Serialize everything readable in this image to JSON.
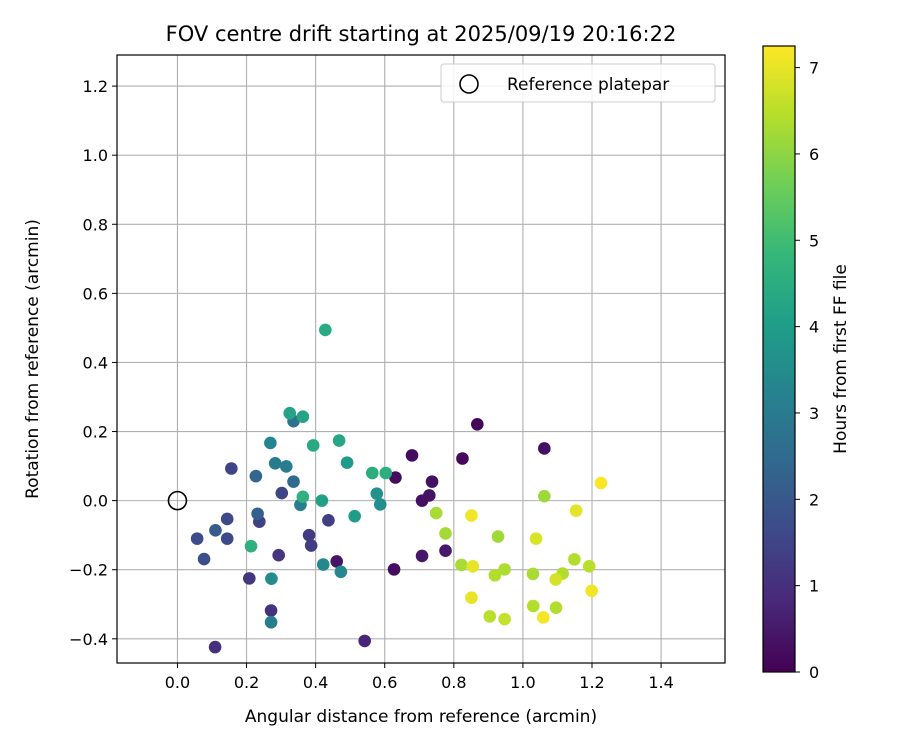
{
  "chart_data": {
    "type": "scatter",
    "title": "FOV centre drift starting at 2025/09/19 20:16:22",
    "xlabel": "Angular distance from reference (arcmin)",
    "ylabel": "Rotation from reference (arcmin)",
    "xlim": [
      -0.175,
      1.585
    ],
    "ylim": [
      -0.47,
      1.29
    ],
    "xticks": [
      0.0,
      0.2,
      0.4,
      0.6,
      0.8,
      1.0,
      1.2,
      1.4
    ],
    "xtick_labels": [
      "0.0",
      "0.2",
      "0.4",
      "0.6",
      "0.8",
      "1.0",
      "1.2",
      "1.4"
    ],
    "yticks": [
      -0.4,
      -0.2,
      0.0,
      0.2,
      0.4,
      0.6,
      0.8,
      1.0,
      1.2
    ],
    "ytick_labels": [
      "−0.4",
      "−0.2",
      "0.0",
      "0.2",
      "0.4",
      "0.6",
      "0.8",
      "1.0",
      "1.2"
    ],
    "grid": true,
    "legend": {
      "placement": "top-right",
      "entries": [
        "Reference platepar"
      ]
    },
    "reference_point": {
      "x": 0.0,
      "y": 0.0,
      "label": "Reference platepar",
      "marker": "hollow-circle"
    },
    "colorbar": {
      "label": "Hours from first FF file",
      "colormap": "viridis",
      "range": [
        0,
        7.25
      ],
      "ticks": [
        0,
        1,
        2,
        3,
        4,
        5,
        6,
        7
      ],
      "tick_labels": [
        "0",
        "1",
        "2",
        "3",
        "4",
        "5",
        "6",
        "7"
      ]
    },
    "series": [
      {
        "color_by": "hours",
        "points": [
          {
            "x": 0.868,
            "y": 0.221,
            "c": 0.1
          },
          {
            "x": 0.679,
            "y": 0.131,
            "c": 0.2
          },
          {
            "x": 0.825,
            "y": 0.122,
            "c": 0.15
          },
          {
            "x": 0.631,
            "y": 0.067,
            "c": 0.2
          },
          {
            "x": 0.737,
            "y": 0.055,
            "c": 0.3
          },
          {
            "x": 0.729,
            "y": 0.015,
            "c": 0.35
          },
          {
            "x": 0.708,
            "y": 0.0,
            "c": 0.3
          },
          {
            "x": 0.627,
            "y": -0.199,
            "c": 0.25
          },
          {
            "x": 0.708,
            "y": -0.16,
            "c": 0.45
          },
          {
            "x": 0.776,
            "y": -0.145,
            "c": 0.5
          },
          {
            "x": 0.461,
            "y": -0.176,
            "c": 0.4
          },
          {
            "x": 1.062,
            "y": 0.151,
            "c": 0.3
          },
          {
            "x": 0.542,
            "y": -0.406,
            "c": 0.75
          },
          {
            "x": 0.109,
            "y": -0.424,
            "c": 1.0
          },
          {
            "x": 0.271,
            "y": -0.318,
            "c": 1.1
          },
          {
            "x": 0.293,
            "y": -0.158,
            "c": 1.15
          },
          {
            "x": 0.208,
            "y": -0.225,
            "c": 1.2
          },
          {
            "x": 0.381,
            "y": -0.1,
            "c": 1.25
          },
          {
            "x": 0.387,
            "y": -0.13,
            "c": 1.3
          },
          {
            "x": 0.437,
            "y": -0.057,
            "c": 1.35
          },
          {
            "x": 0.237,
            "y": -0.061,
            "c": 1.4
          },
          {
            "x": 0.302,
            "y": 0.022,
            "c": 1.5
          },
          {
            "x": 0.156,
            "y": 0.093,
            "c": 1.5
          },
          {
            "x": 0.144,
            "y": -0.053,
            "c": 1.6
          },
          {
            "x": 0.144,
            "y": -0.11,
            "c": 1.65
          },
          {
            "x": 0.057,
            "y": -0.11,
            "c": 1.7
          },
          {
            "x": 0.077,
            "y": -0.169,
            "c": 1.8
          },
          {
            "x": 0.11,
            "y": -0.086,
            "c": 2.1
          },
          {
            "x": 0.232,
            "y": -0.038,
            "c": 2.2
          },
          {
            "x": 0.227,
            "y": 0.071,
            "c": 2.4
          },
          {
            "x": 0.336,
            "y": 0.055,
            "c": 2.5
          },
          {
            "x": 0.336,
            "y": 0.23,
            "c": 2.8
          },
          {
            "x": 0.356,
            "y": -0.012,
            "c": 3.0
          },
          {
            "x": 0.283,
            "y": 0.108,
            "c": 3.0
          },
          {
            "x": 0.315,
            "y": 0.099,
            "c": 3.1
          },
          {
            "x": 0.271,
            "y": -0.352,
            "c": 3.1
          },
          {
            "x": 0.269,
            "y": 0.167,
            "c": 3.3
          },
          {
            "x": 0.422,
            "y": -0.185,
            "c": 3.4
          },
          {
            "x": 0.473,
            "y": -0.206,
            "c": 3.4
          },
          {
            "x": 0.272,
            "y": -0.226,
            "c": 3.5
          },
          {
            "x": 0.587,
            "y": -0.011,
            "c": 3.6
          },
          {
            "x": 0.577,
            "y": 0.02,
            "c": 3.7
          },
          {
            "x": 0.491,
            "y": 0.11,
            "c": 3.9
          },
          {
            "x": 0.513,
            "y": -0.045,
            "c": 4.0
          },
          {
            "x": 0.418,
            "y": 0.0,
            "c": 4.1
          },
          {
            "x": 0.325,
            "y": 0.253,
            "c": 4.2
          },
          {
            "x": 0.363,
            "y": 0.243,
            "c": 4.2
          },
          {
            "x": 0.468,
            "y": 0.174,
            "c": 4.3
          },
          {
            "x": 0.393,
            "y": 0.16,
            "c": 4.35
          },
          {
            "x": 0.428,
            "y": 0.494,
            "c": 4.4
          },
          {
            "x": 0.564,
            "y": 0.08,
            "c": 4.5
          },
          {
            "x": 0.603,
            "y": 0.08,
            "c": 4.55
          },
          {
            "x": 0.363,
            "y": 0.011,
            "c": 4.6
          },
          {
            "x": 0.213,
            "y": -0.132,
            "c": 4.6
          },
          {
            "x": 1.062,
            "y": 0.013,
            "c": 6.2
          },
          {
            "x": 0.749,
            "y": -0.036,
            "c": 6.3
          },
          {
            "x": 0.776,
            "y": -0.095,
            "c": 6.25
          },
          {
            "x": 0.928,
            "y": -0.104,
            "c": 6.2
          },
          {
            "x": 0.822,
            "y": -0.186,
            "c": 6.3
          },
          {
            "x": 0.947,
            "y": -0.199,
            "c": 6.35
          },
          {
            "x": 0.919,
            "y": -0.216,
            "c": 6.4
          },
          {
            "x": 1.029,
            "y": -0.212,
            "c": 6.3
          },
          {
            "x": 1.115,
            "y": -0.211,
            "c": 6.4
          },
          {
            "x": 1.149,
            "y": -0.17,
            "c": 6.4
          },
          {
            "x": 1.192,
            "y": -0.19,
            "c": 6.5
          },
          {
            "x": 1.096,
            "y": -0.31,
            "c": 6.4
          },
          {
            "x": 1.03,
            "y": -0.305,
            "c": 6.4
          },
          {
            "x": 0.904,
            "y": -0.335,
            "c": 6.5
          },
          {
            "x": 0.947,
            "y": -0.343,
            "c": 6.6
          },
          {
            "x": 1.095,
            "y": -0.228,
            "c": 6.8
          },
          {
            "x": 1.038,
            "y": -0.11,
            "c": 6.85
          },
          {
            "x": 1.154,
            "y": -0.029,
            "c": 6.95
          },
          {
            "x": 0.851,
            "y": -0.281,
            "c": 7.0
          },
          {
            "x": 0.855,
            "y": -0.19,
            "c": 7.0
          },
          {
            "x": 0.851,
            "y": -0.043,
            "c": 7.1
          },
          {
            "x": 1.059,
            "y": -0.338,
            "c": 7.15
          },
          {
            "x": 1.199,
            "y": -0.261,
            "c": 7.1
          },
          {
            "x": 1.226,
            "y": 0.051,
            "c": 7.2
          }
        ]
      }
    ]
  }
}
